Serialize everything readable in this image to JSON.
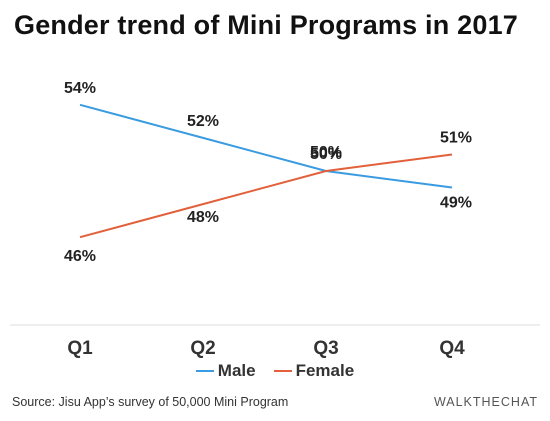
{
  "chart_data": {
    "type": "line",
    "title": "Gender trend of Mini Programs in 2017",
    "categories": [
      "Q1",
      "Q2",
      "Q3",
      "Q4"
    ],
    "series": [
      {
        "name": "Male",
        "values": [
          54,
          52,
          50,
          49
        ],
        "labels": [
          "54%",
          "52%",
          "50%",
          "49%"
        ],
        "color": "#3a9be0"
      },
      {
        "name": "Female",
        "values": [
          46,
          48,
          50,
          51
        ],
        "labels": [
          "46%",
          "48%",
          "50%",
          "51%"
        ],
        "color": "#e2603a"
      }
    ],
    "ylim": [
      44.5,
      55.5
    ],
    "grid": false,
    "legend": "bottom-center"
  },
  "source": "Source: Jisu App’s survey of 50,000 Mini Program",
  "brand": "WALKTHECHAT"
}
